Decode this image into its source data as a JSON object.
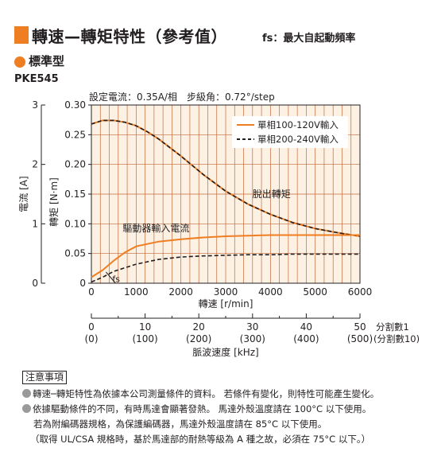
{
  "header": {
    "title": "轉速—轉矩特性（參考值）",
    "title_note": "fs：最大自起動頻率",
    "section": "標準型",
    "model": "PKE545",
    "conditions": "設定電流：0.35A/相　步級角：0.72°/step"
  },
  "colors": {
    "accent": "#ef7d22",
    "grid": "#c06a3a",
    "plot_bg": "#fdf1e3",
    "dashed": "#231f20"
  },
  "chart_data": {
    "type": "line",
    "xlabel": "轉速 [r/min]",
    "xlim": [
      0,
      6000
    ],
    "x_ticks": [
      "0",
      "1000",
      "2000",
      "3000",
      "4000",
      "5000",
      "6000"
    ],
    "y_torque": {
      "label": "轉矩 [N·m]",
      "lim": [
        0,
        0.3
      ],
      "ticks": [
        "0",
        "0.05",
        "0.10",
        "0.15",
        "0.20",
        "0.25",
        "0.30"
      ]
    },
    "y_current": {
      "label": "電流 [A]",
      "lim": [
        0,
        3
      ],
      "ticks": [
        "0",
        "1",
        "2",
        "3"
      ]
    },
    "grid": true,
    "legend_position": "top-right",
    "series": [
      {
        "name": "單相100-120V輸入",
        "style": "solid",
        "color": "#ef7d22",
        "group": "torque",
        "x": [
          0,
          250,
          500,
          750,
          1000,
          1250,
          1500,
          2000,
          2500,
          3000,
          3500,
          4000,
          4500,
          5000,
          5500,
          6000
        ],
        "y": [
          0.268,
          0.274,
          0.274,
          0.271,
          0.265,
          0.255,
          0.243,
          0.214,
          0.183,
          0.155,
          0.133,
          0.116,
          0.102,
          0.092,
          0.085,
          0.079
        ]
      },
      {
        "name": "單相200-240V輸入",
        "style": "dashed",
        "color": "#231f20",
        "group": "torque",
        "x": [
          0,
          250,
          500,
          750,
          1000,
          1250,
          1500,
          2000,
          2500,
          3000,
          3500,
          4000,
          4500,
          5000,
          5500,
          6000
        ],
        "y": [
          0.268,
          0.274,
          0.274,
          0.271,
          0.265,
          0.255,
          0.243,
          0.214,
          0.183,
          0.155,
          0.133,
          0.116,
          0.102,
          0.092,
          0.085,
          0.079
        ]
      },
      {
        "name": "",
        "style": "solid",
        "color": "#ef7d22",
        "group": "current",
        "x": [
          0,
          250,
          500,
          750,
          1000,
          1500,
          2000,
          2500,
          3000,
          3500,
          4000,
          4500,
          5000,
          5500,
          6000
        ],
        "y": [
          0.1,
          0.22,
          0.38,
          0.52,
          0.62,
          0.7,
          0.74,
          0.77,
          0.79,
          0.8,
          0.81,
          0.81,
          0.81,
          0.81,
          0.81
        ]
      },
      {
        "name": "",
        "style": "dashed",
        "color": "#231f20",
        "group": "current",
        "x": [
          0,
          250,
          500,
          1000,
          1500,
          2000,
          2500,
          3000,
          3500,
          4000,
          4500,
          5000,
          5500,
          6000
        ],
        "y": [
          0.02,
          0.1,
          0.2,
          0.32,
          0.4,
          0.44,
          0.46,
          0.47,
          0.48,
          0.48,
          0.49,
          0.49,
          0.49,
          0.49
        ]
      }
    ],
    "annotations": [
      {
        "text": "脫出轉矩",
        "x": 3600,
        "y": 0.15
      },
      {
        "text": "驅動器輸入電流",
        "x": 700,
        "y": 0.087
      },
      {
        "text": "fs",
        "x": 540,
        "y": 0.005
      }
    ],
    "secondary_axis": {
      "label": "脈波速度 [kHz]",
      "ticks_top": [
        "0",
        "10",
        "20",
        "30",
        "40",
        "50"
      ],
      "ticks_bottom": [
        "(0)",
        "(100)",
        "(200)",
        "(300)",
        "(400)",
        "(500)"
      ],
      "division_labels": [
        "分割數1",
        "(分割數10)"
      ]
    }
  },
  "notes": {
    "heading": "注意事項",
    "lines": [
      "轉速─轉矩特性為依據本公司測量條件的資料。 若條件有變化，則特性可能產生變化。",
      "依據驅動條件的不同，有時馬達會顯著發熱。 馬達外殼溫度請在 100°C 以下使用。",
      "若為附編碼器規格，為保護編碼器，馬達外殼溫度請在 85°C 以下使用。",
      "（取得 UL/CSA 規格時，基於馬達部的耐熱等級為 A 種之故，必須在 75°C 以下。）"
    ]
  }
}
